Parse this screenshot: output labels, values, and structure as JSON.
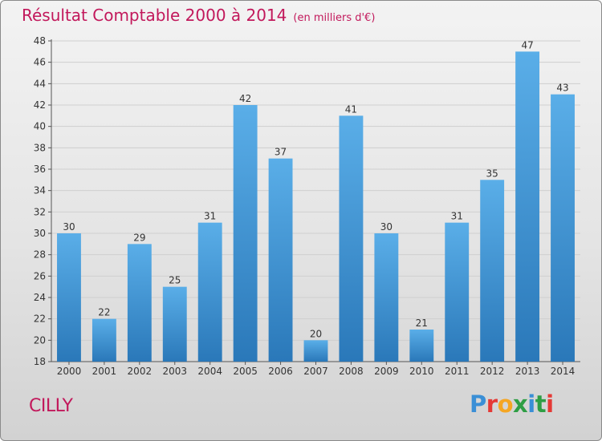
{
  "header": {
    "title": "Résultat Comptable 2000 à 2014",
    "unit": "(en milliers d'€)"
  },
  "footer": {
    "town": "CILLY",
    "logo_text": "Proxiti",
    "logo_colors": [
      "#3a8fd6",
      "#e53935",
      "#f5a623",
      "#2e9e44",
      "#3a8fd6",
      "#2e9e44",
      "#e53935"
    ]
  },
  "colors": {
    "bar_top": "#5aaee8",
    "bar_bottom": "#2a78b9",
    "title": "#c2185b",
    "gridline": "#cfcfcf"
  },
  "chart_data": {
    "type": "bar",
    "title": "Résultat Comptable 2000 à 2014",
    "subtitle": "(en milliers d'€)",
    "xlabel": "",
    "ylabel": "",
    "categories": [
      "2000",
      "2001",
      "2002",
      "2003",
      "2004",
      "2005",
      "2006",
      "2007",
      "2008",
      "2009",
      "2010",
      "2011",
      "2012",
      "2013",
      "2014"
    ],
    "values": [
      30,
      22,
      29,
      25,
      31,
      42,
      37,
      20,
      41,
      30,
      21,
      31,
      35,
      47,
      43
    ],
    "ylim": [
      18,
      48
    ],
    "yticks": [
      18,
      20,
      22,
      24,
      26,
      28,
      30,
      32,
      34,
      36,
      38,
      40,
      42,
      44,
      46,
      48
    ],
    "grid": true
  }
}
